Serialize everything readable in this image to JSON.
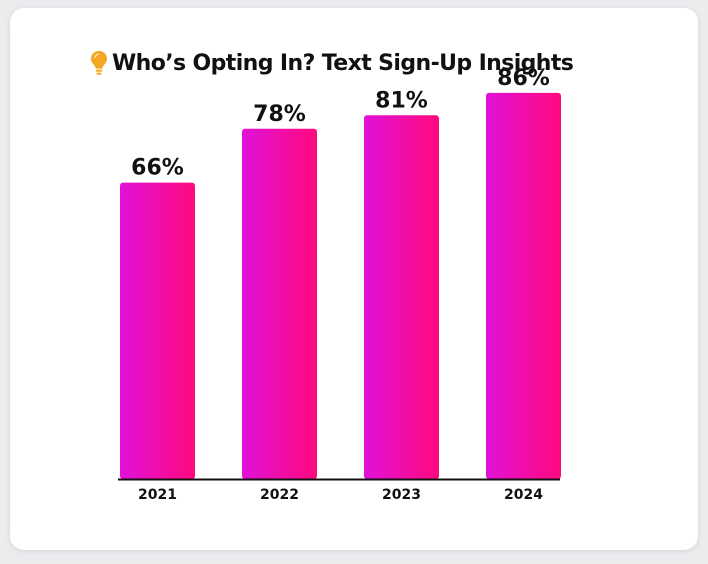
{
  "title": "Who’s Opting In? Text Sign-Up Insights",
  "title_icon": "lightbulb-icon",
  "colors": {
    "bar_start": "#e011d8",
    "bar_end": "#ff0a7e",
    "bulb": "#f5a623",
    "axis": "#111111"
  },
  "chart_data": {
    "type": "bar",
    "categories": [
      "2021",
      "2022",
      "2023",
      "2024"
    ],
    "values": [
      66,
      78,
      81,
      86
    ],
    "data_labels": [
      "66%",
      "78%",
      "81%",
      "86%"
    ],
    "xlabel": "",
    "ylabel": "",
    "ylim": [
      0,
      100
    ],
    "grid": false,
    "legend": "none"
  }
}
